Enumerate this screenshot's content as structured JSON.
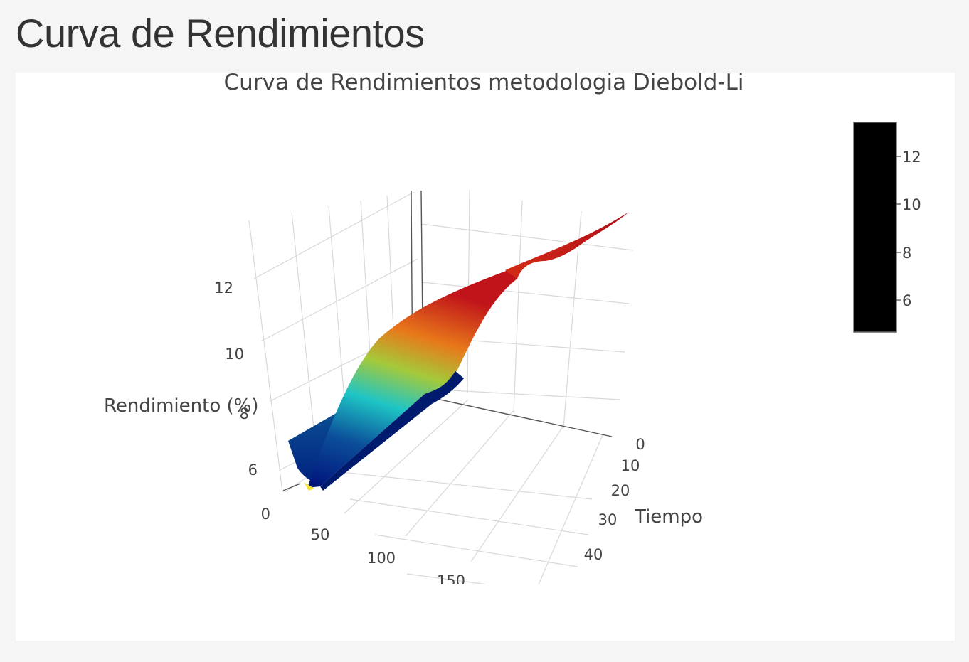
{
  "page": {
    "title": "Curva de Rendimientos"
  },
  "chart_data": {
    "type": "surface",
    "title": "Curva de Rendimientos metodologia Diebold-Li",
    "axes": {
      "x": {
        "label": "",
        "ticks": [
          "0",
          "50",
          "100",
          "150"
        ]
      },
      "y": {
        "label": "Tiempo",
        "ticks": [
          "0",
          "10",
          "20",
          "30",
          "40"
        ]
      },
      "z": {
        "label": "Rendimiento (%)",
        "ticks": [
          "6",
          "8",
          "10",
          "12"
        ],
        "zero_label": "0"
      }
    },
    "colorbar": {
      "ticks": [
        "6",
        "8",
        "10",
        "12"
      ],
      "range": [
        4.8,
        13.5
      ],
      "fill": "#000000"
    },
    "colorscale": [
      "#00107a",
      "#0b4f9a",
      "#15a6c9",
      "#1ec5c5",
      "#a5c93a",
      "#e8c21a",
      "#e8791a",
      "#cc1a1a",
      "#b0101a"
    ],
    "grid": true,
    "surface": {
      "description": "yield surface: maturity (x, 0-180) vs time (y, 0-45), rendimiento (z)",
      "zrange": [
        4.8,
        13.5
      ]
    }
  }
}
